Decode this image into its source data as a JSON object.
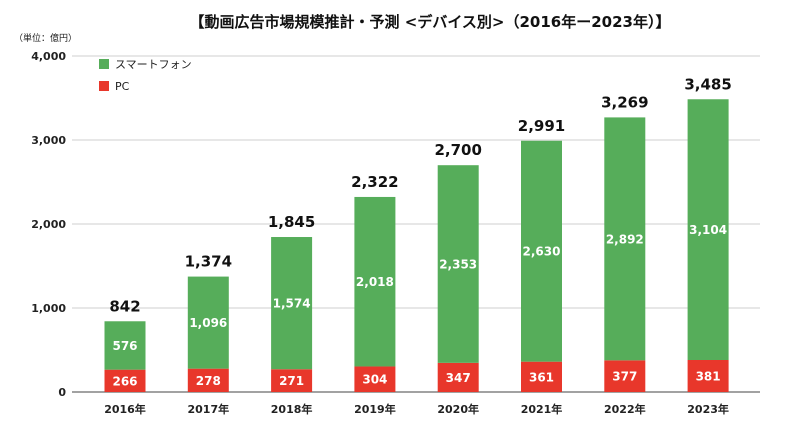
{
  "chart_data": {
    "type": "bar",
    "stacked": true,
    "title": "【動画広告市場規模推計・予測 <デバイス別>（2016年ー2023年）】",
    "unit_label": "（単位：億円）",
    "categories": [
      "2016年",
      "2017年",
      "2018年",
      "2019年",
      "2020年",
      "2021年",
      "2022年",
      "2023年"
    ],
    "series": [
      {
        "name": "PC",
        "color": "#e8372b",
        "values": [
          266,
          278,
          271,
          304,
          347,
          361,
          377,
          381
        ]
      },
      {
        "name": "スマートフォン",
        "color": "#56ad5a",
        "values": [
          576,
          1096,
          1574,
          2018,
          2353,
          2630,
          2892,
          3104
        ]
      }
    ],
    "totals": [
      842,
      1374,
      1845,
      2322,
      2700,
      2991,
      3269,
      3485
    ],
    "totals_labels": [
      "842",
      "1,374",
      "1,845",
      "2,322",
      "2,700",
      "2,991",
      "3,269",
      "3,485"
    ],
    "segment_labels": {
      "PC": [
        "266",
        "278",
        "271",
        "304",
        "347",
        "361",
        "377",
        "381"
      ],
      "スマートフォン": [
        "576",
        "1,096",
        "1,574",
        "2,018",
        "2,353",
        "2,630",
        "2,892",
        "3,104"
      ]
    },
    "yticks": [
      0,
      1000,
      2000,
      3000,
      4000
    ],
    "ytick_labels": [
      "0",
      "1,000",
      "2,000",
      "3,000",
      "4,000"
    ],
    "ylim": [
      0,
      4000
    ],
    "grid": true,
    "legend": [
      {
        "name": "スマートフォン",
        "color": "#56ad5a"
      },
      {
        "name": "PC",
        "color": "#e8372b"
      }
    ],
    "legend_position": "top-left"
  }
}
